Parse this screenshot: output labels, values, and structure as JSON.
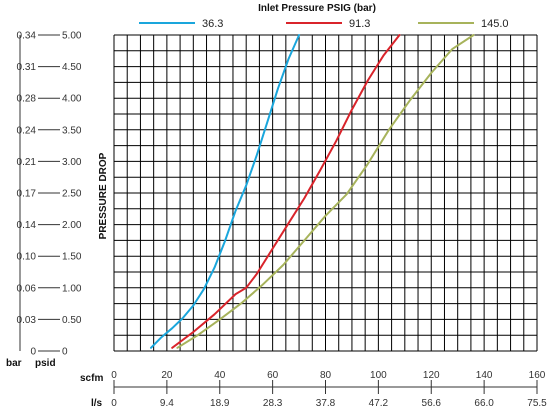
{
  "chart_data": {
    "type": "line",
    "title": "Inlet Pressure  PSIG (bar)",
    "ylabel": "PRESSURE DROP",
    "y_unit_psid": "psid",
    "y_unit_bar": "bar",
    "x_unit_scfm": "scfm",
    "x_unit_ls": "l/s",
    "xlim": [
      0,
      160
    ],
    "ylim": [
      0,
      5
    ],
    "grid": true,
    "legend_position": "top",
    "y_ticks_psid": [
      "0",
      "0.50",
      "1.00",
      "1.50",
      "2.00",
      "2.50",
      "3.00",
      "3.50",
      "4.00",
      "4.50",
      "5.00"
    ],
    "y_ticks_bar": [
      "0",
      "0.03",
      "0.06",
      "0.10",
      "0.14",
      "0.17",
      "0.21",
      "0.24",
      "0.28",
      "0.31",
      "0.34"
    ],
    "x_ticks_scfm": [
      "0",
      "20",
      "40",
      "60",
      "80",
      "100",
      "120",
      "140",
      "160"
    ],
    "x_ticks_ls": [
      "0",
      "9.4",
      "18.9",
      "28.3",
      "37.8",
      "47.2",
      "56.6",
      "66.0",
      "75.5"
    ],
    "series": [
      {
        "name": "36.3",
        "color": "#1aa6dc",
        "x": [
          14,
          18,
          22,
          26,
          30,
          34,
          38,
          42,
          46,
          50,
          54,
          58,
          62,
          66,
          70
        ],
        "y": [
          0.05,
          0.22,
          0.36,
          0.52,
          0.72,
          0.98,
          1.32,
          1.74,
          2.22,
          2.62,
          3.1,
          3.62,
          4.15,
          4.62,
          5.0
        ]
      },
      {
        "name": "91.3",
        "color": "#d9242b",
        "x": [
          22,
          30,
          38,
          46,
          50,
          54,
          60,
          66,
          72,
          78,
          84,
          90,
          96,
          102,
          108
        ],
        "y": [
          0.05,
          0.3,
          0.58,
          0.9,
          1.0,
          1.22,
          1.62,
          2.02,
          2.42,
          2.86,
          3.32,
          3.82,
          4.28,
          4.68,
          5.0
        ]
      },
      {
        "name": "145.0",
        "color": "#a7b35b",
        "x": [
          24,
          32,
          40,
          48,
          56,
          64,
          72,
          80,
          88,
          96,
          104,
          112,
          120,
          128,
          136
        ],
        "y": [
          0.05,
          0.26,
          0.5,
          0.75,
          1.04,
          1.36,
          1.75,
          2.14,
          2.48,
          2.96,
          3.5,
          3.97,
          4.4,
          4.78,
          5.0
        ]
      }
    ]
  }
}
